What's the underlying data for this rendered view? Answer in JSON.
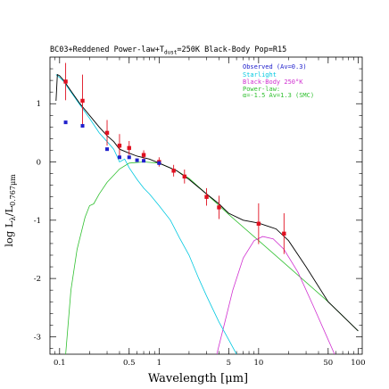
{
  "chart_data": {
    "type": "line",
    "title": "BC03+Reddened Power-law+T",
    "title_sub": "dust",
    "title_rest": "=250K Black-Body   Pop=R15",
    "xlabel": "Wavelength [μm]",
    "ylabel": "log Lλ/L0.767μm",
    "ylabel_main": "log L",
    "ylabel_sub1": "λ",
    "ylabel_slash": "/L",
    "ylabel_sub2": "0.767μm",
    "x_scale": "log",
    "xlim": [
      0.08,
      110
    ],
    "ylim": [
      -3.3,
      1.8
    ],
    "x_ticks": [
      0.1,
      0.5,
      1,
      5,
      10,
      50,
      100
    ],
    "x_tick_labels": [
      "0.1",
      "0.5",
      "1",
      "5",
      "10",
      "50",
      "100"
    ],
    "y_ticks": [
      -3,
      -2,
      -1,
      0,
      1
    ],
    "y_tick_labels": [
      "-3",
      "-2",
      "-1",
      "0",
      "1"
    ],
    "legend_position": "top-right",
    "legend": [
      {
        "text": "Observed  (Av=0.3)",
        "color": "#2020cc"
      },
      {
        "text": "Starlight",
        "color": "#00c8e0"
      },
      {
        "text": "Black-Body 250°K",
        "color": "#d030d0"
      },
      {
        "text": "Power-law:",
        "color": "#30c030"
      },
      {
        "text": "α=-1.5 Av=1.3 (SMC)",
        "color": "#30c030"
      }
    ],
    "series": [
      {
        "name": "Observed",
        "kind": "errorbar",
        "color": "#e01020",
        "points": [
          {
            "x": 0.115,
            "y": 1.38,
            "err": 0.32
          },
          {
            "x": 0.17,
            "y": 1.05,
            "err": 0.45
          },
          {
            "x": 0.3,
            "y": 0.5,
            "err": 0.22
          },
          {
            "x": 0.4,
            "y": 0.28,
            "err": 0.2
          },
          {
            "x": 0.5,
            "y": 0.24,
            "err": 0.12
          },
          {
            "x": 0.7,
            "y": 0.12,
            "err": 0.08
          },
          {
            "x": 1.0,
            "y": 0.0,
            "err": 0.08
          },
          {
            "x": 1.4,
            "y": -0.15,
            "err": 0.1
          },
          {
            "x": 1.8,
            "y": -0.25,
            "err": 0.12
          },
          {
            "x": 3.0,
            "y": -0.6,
            "err": 0.15
          },
          {
            "x": 4.0,
            "y": -0.78,
            "err": 0.2
          },
          {
            "x": 10.0,
            "y": -1.06,
            "err": 0.35
          },
          {
            "x": 18.0,
            "y": -1.23,
            "err": 0.35
          }
        ]
      },
      {
        "name": "Observed (Av=0.3)",
        "kind": "markers",
        "color": "#2020cc",
        "points": [
          {
            "x": 0.115,
            "y": 0.68
          },
          {
            "x": 0.17,
            "y": 0.62
          },
          {
            "x": 0.3,
            "y": 0.22
          },
          {
            "x": 0.4,
            "y": 0.08
          },
          {
            "x": 0.5,
            "y": 0.08
          },
          {
            "x": 0.6,
            "y": 0.03
          },
          {
            "x": 0.7,
            "y": 0.02
          },
          {
            "x": 1.0,
            "y": -0.02
          }
        ]
      },
      {
        "name": "Starlight",
        "kind": "line",
        "color": "#00c8e0",
        "points": [
          {
            "x": 0.092,
            "y": 1.5
          },
          {
            "x": 0.1,
            "y": 1.45
          },
          {
            "x": 0.11,
            "y": 1.38
          },
          {
            "x": 0.13,
            "y": 1.2
          },
          {
            "x": 0.16,
            "y": 0.98
          },
          {
            "x": 0.2,
            "y": 0.75
          },
          {
            "x": 0.25,
            "y": 0.5
          },
          {
            "x": 0.3,
            "y": 0.35
          },
          {
            "x": 0.35,
            "y": 0.22
          },
          {
            "x": 0.4,
            "y": 0.0
          },
          {
            "x": 0.45,
            "y": 0.05
          },
          {
            "x": 0.5,
            "y": -0.1
          },
          {
            "x": 0.6,
            "y": -0.3
          },
          {
            "x": 0.7,
            "y": -0.45
          },
          {
            "x": 0.8,
            "y": -0.55
          },
          {
            "x": 1.0,
            "y": -0.75
          },
          {
            "x": 1.3,
            "y": -1.0
          },
          {
            "x": 1.6,
            "y": -1.3
          },
          {
            "x": 2.0,
            "y": -1.6
          },
          {
            "x": 2.5,
            "y": -2.0
          },
          {
            "x": 3.0,
            "y": -2.3
          },
          {
            "x": 4.0,
            "y": -2.75
          },
          {
            "x": 5.0,
            "y": -3.05
          },
          {
            "x": 6.0,
            "y": -3.3
          }
        ]
      },
      {
        "name": "Power-law",
        "kind": "line",
        "color": "#30c030",
        "points": [
          {
            "x": 0.115,
            "y": -3.3
          },
          {
            "x": 0.13,
            "y": -2.2
          },
          {
            "x": 0.15,
            "y": -1.5
          },
          {
            "x": 0.18,
            "y": -0.95
          },
          {
            "x": 0.2,
            "y": -0.75
          },
          {
            "x": 0.22,
            "y": -0.72
          },
          {
            "x": 0.25,
            "y": -0.55
          },
          {
            "x": 0.3,
            "y": -0.35
          },
          {
            "x": 0.4,
            "y": -0.12
          },
          {
            "x": 0.5,
            "y": -0.02
          },
          {
            "x": 0.7,
            "y": 0.0
          },
          {
            "x": 1.0,
            "y": -0.02
          },
          {
            "x": 1.5,
            "y": -0.15
          },
          {
            "x": 2.0,
            "y": -0.28
          },
          {
            "x": 3.0,
            "y": -0.55
          },
          {
            "x": 5.0,
            "y": -0.9
          },
          {
            "x": 10.0,
            "y": -1.35
          },
          {
            "x": 20.0,
            "y": -1.8
          },
          {
            "x": 50.0,
            "y": -2.4
          },
          {
            "x": 100.0,
            "y": -2.9
          }
        ]
      },
      {
        "name": "Black-Body 250K",
        "kind": "line",
        "color": "#d030d0",
        "points": [
          {
            "x": 3.8,
            "y": -3.3
          },
          {
            "x": 4.5,
            "y": -2.8
          },
          {
            "x": 5.5,
            "y": -2.2
          },
          {
            "x": 7.0,
            "y": -1.65
          },
          {
            "x": 9.0,
            "y": -1.35
          },
          {
            "x": 11.0,
            "y": -1.28
          },
          {
            "x": 14.0,
            "y": -1.32
          },
          {
            "x": 18.0,
            "y": -1.5
          },
          {
            "x": 25.0,
            "y": -1.9
          },
          {
            "x": 35.0,
            "y": -2.45
          },
          {
            "x": 50.0,
            "y": -3.05
          },
          {
            "x": 58.0,
            "y": -3.3
          }
        ]
      },
      {
        "name": "Total",
        "kind": "line",
        "color": "#000000",
        "points": [
          {
            "x": 0.092,
            "y": 1.05
          },
          {
            "x": 0.095,
            "y": 1.5
          },
          {
            "x": 0.1,
            "y": 1.48
          },
          {
            "x": 0.11,
            "y": 1.4
          },
          {
            "x": 0.13,
            "y": 1.22
          },
          {
            "x": 0.16,
            "y": 1.0
          },
          {
            "x": 0.2,
            "y": 0.8
          },
          {
            "x": 0.25,
            "y": 0.6
          },
          {
            "x": 0.3,
            "y": 0.45
          },
          {
            "x": 0.35,
            "y": 0.35
          },
          {
            "x": 0.4,
            "y": 0.22
          },
          {
            "x": 0.5,
            "y": 0.15
          },
          {
            "x": 0.6,
            "y": 0.1
          },
          {
            "x": 0.8,
            "y": 0.05
          },
          {
            "x": 1.0,
            "y": -0.02
          },
          {
            "x": 1.5,
            "y": -0.15
          },
          {
            "x": 2.0,
            "y": -0.3
          },
          {
            "x": 3.0,
            "y": -0.55
          },
          {
            "x": 4.0,
            "y": -0.72
          },
          {
            "x": 5.0,
            "y": -0.88
          },
          {
            "x": 7.0,
            "y": -1.0
          },
          {
            "x": 10.0,
            "y": -1.05
          },
          {
            "x": 15.0,
            "y": -1.15
          },
          {
            "x": 20.0,
            "y": -1.35
          },
          {
            "x": 30.0,
            "y": -1.8
          },
          {
            "x": 50.0,
            "y": -2.4
          },
          {
            "x": 100.0,
            "y": -2.9
          }
        ]
      }
    ]
  }
}
